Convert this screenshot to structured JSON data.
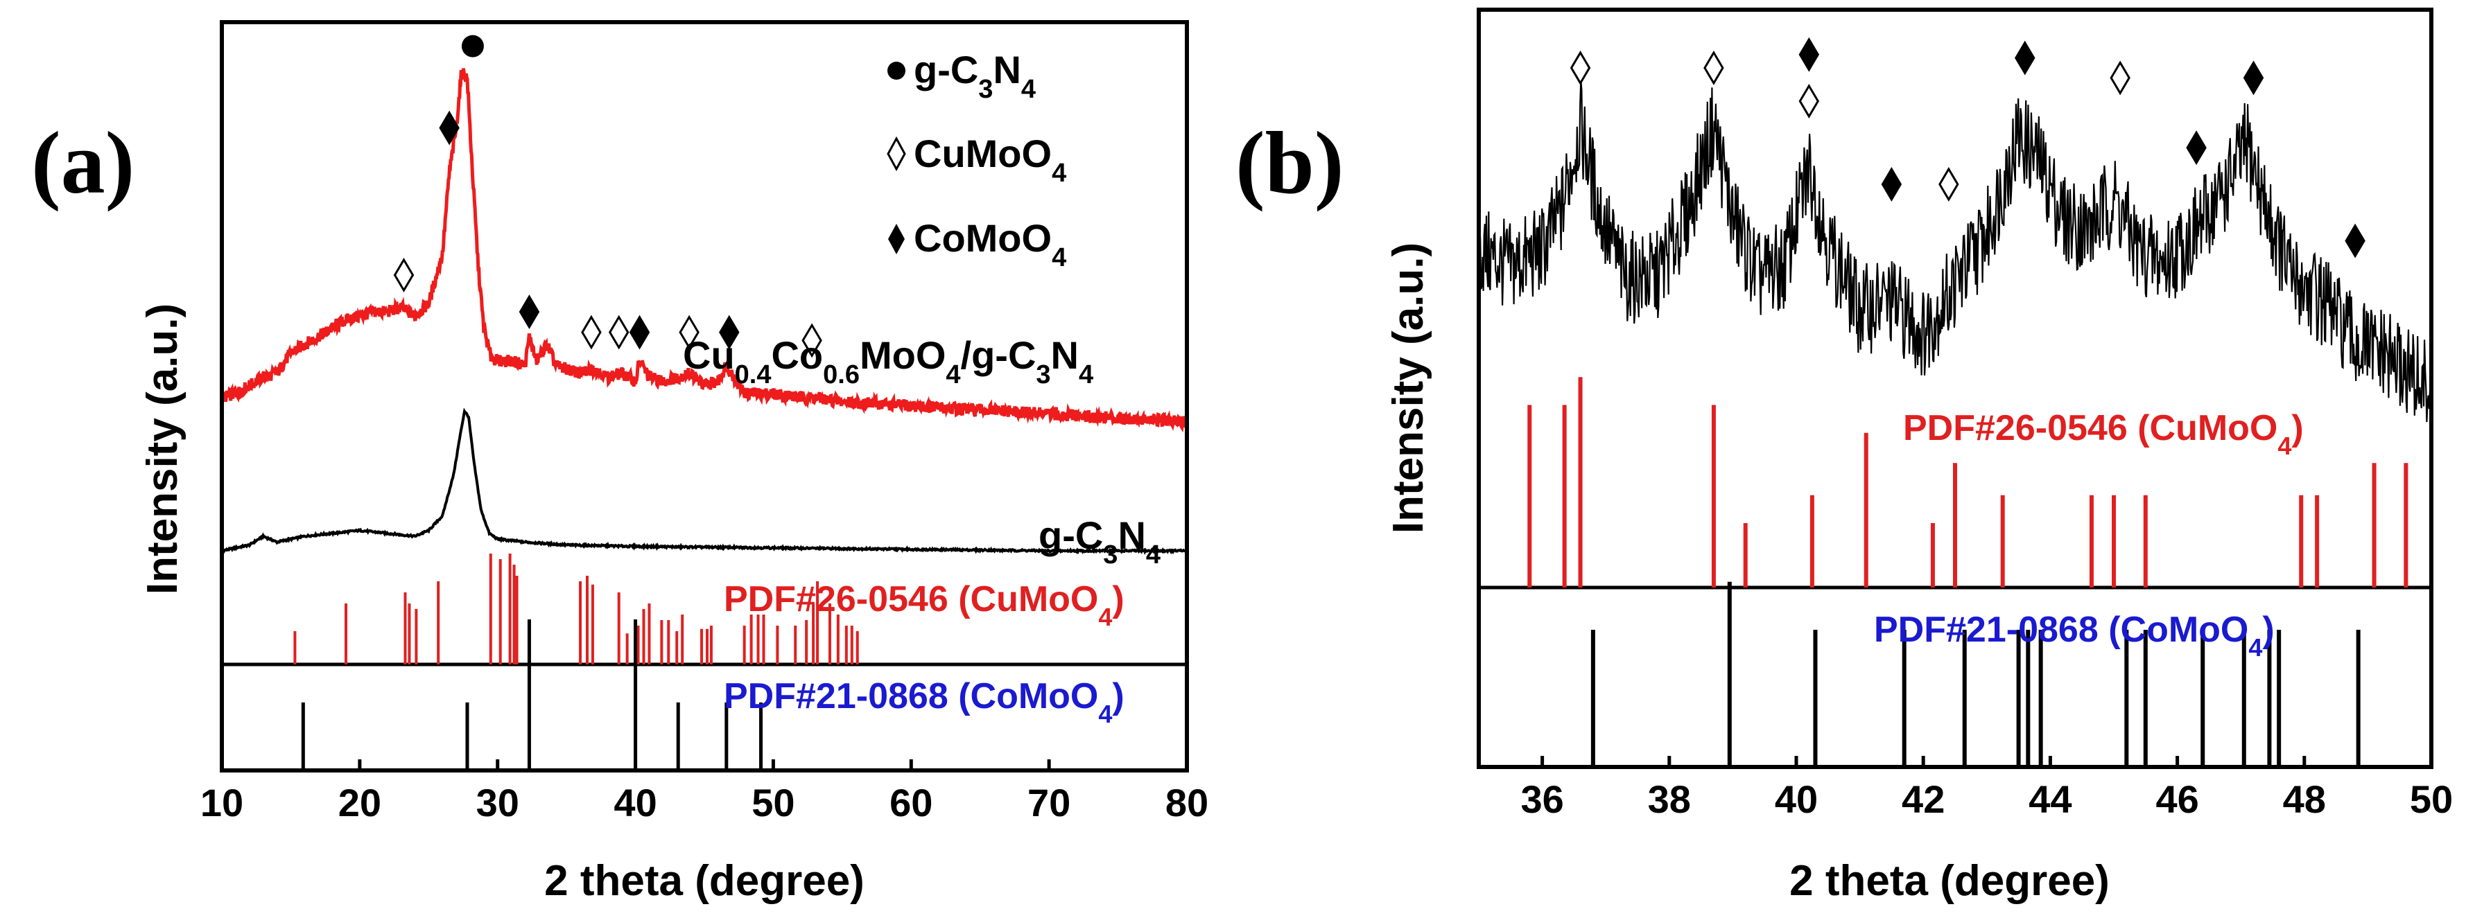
{
  "colors": {
    "sample": "#ee1c1c",
    "pdf_cu": "#e02020",
    "pdf_co_text": "#1a1ad0",
    "black": "#000000"
  },
  "chart_data": [
    {
      "panel_label": "(a)",
      "type": "line",
      "xlabel": "2 theta (degree)",
      "ylabel": "Intensity (a.u.)",
      "xlim": [
        10,
        80
      ],
      "xticks": [
        10,
        20,
        30,
        40,
        50,
        60,
        70,
        80
      ],
      "legend": [
        {
          "symbol": "filled-circle",
          "label": "g-C3N4"
        },
        {
          "symbol": "open-diamond",
          "label": "CuMoO4"
        },
        {
          "symbol": "filled-diamond",
          "label": "CoMoO4"
        }
      ],
      "series": [
        {
          "name": "Cu0.4Co0.6MoO4/g-C3N4",
          "color": "#ee1c1c",
          "x": [
            10,
            11,
            12,
            13,
            14,
            15,
            16,
            17,
            18,
            19,
            20,
            21,
            22,
            23,
            24,
            25,
            26,
            26.5,
            27,
            27.4,
            27.8,
            28.2,
            28.6,
            29,
            29.5,
            30,
            31,
            32,
            32.3,
            32.8,
            33.6,
            34.2,
            35,
            36,
            37,
            38,
            39,
            40,
            40.3,
            41,
            42,
            43,
            44,
            45,
            46,
            46.6,
            47.5,
            48,
            50,
            52,
            53,
            55,
            60,
            65,
            70,
            75,
            80
          ],
          "y": [
            0.2,
            0.21,
            0.23,
            0.25,
            0.26,
            0.31,
            0.33,
            0.35,
            0.37,
            0.39,
            0.4,
            0.41,
            0.41,
            0.42,
            0.4,
            0.43,
            0.55,
            0.75,
            0.86,
            1.0,
            0.98,
            0.74,
            0.52,
            0.37,
            0.3,
            0.29,
            0.29,
            0.28,
            0.35,
            0.29,
            0.33,
            0.28,
            0.27,
            0.26,
            0.27,
            0.25,
            0.26,
            0.24,
            0.29,
            0.25,
            0.24,
            0.25,
            0.26,
            0.23,
            0.24,
            0.28,
            0.23,
            0.21,
            0.21,
            0.2,
            0.2,
            0.19,
            0.18,
            0.17,
            0.16,
            0.15,
            0.14
          ]
        },
        {
          "name": "g-C3N4",
          "color": "#000000",
          "x": [
            10,
            12,
            13,
            14,
            16,
            18,
            20,
            22,
            24,
            25,
            26,
            26.8,
            27.3,
            27.6,
            27.9,
            28.3,
            28.8,
            29.4,
            30,
            32,
            35,
            40,
            50,
            60,
            70,
            80
          ],
          "y": [
            0.0,
            0.02,
            0.05,
            0.03,
            0.05,
            0.06,
            0.07,
            0.06,
            0.05,
            0.07,
            0.12,
            0.26,
            0.4,
            0.48,
            0.46,
            0.3,
            0.14,
            0.06,
            0.04,
            0.03,
            0.02,
            0.015,
            0.01,
            0.005,
            0.0,
            0.0
          ]
        }
      ],
      "references": [
        {
          "name": "PDF#26-0546 (CuMoO4)",
          "color": "#e02020",
          "positions": [
            15.3,
            19.0,
            23.3,
            23.6,
            24.1,
            25.7,
            29.5,
            30.2,
            30.9,
            31.2,
            31.4,
            36.0,
            36.5,
            36.9,
            38.8,
            39.4,
            40.2,
            40.6,
            41.0,
            41.9,
            42.4,
            43.0,
            43.4,
            44.8,
            45.2,
            45.5,
            47.9,
            48.4,
            48.9,
            49.3,
            50.3,
            51.6,
            52.4,
            52.9,
            53.2,
            54.1,
            54.7,
            55.3,
            55.7,
            56.1
          ],
          "heights": [
            0.3,
            0.55,
            0.65,
            0.55,
            0.5,
            0.75,
            1.0,
            0.95,
            1.0,
            0.9,
            0.8,
            0.75,
            0.8,
            0.72,
            0.65,
            0.28,
            0.35,
            0.5,
            0.55,
            0.4,
            0.4,
            0.3,
            0.45,
            0.32,
            0.32,
            0.35,
            0.35,
            0.45,
            0.45,
            0.45,
            0.35,
            0.35,
            0.4,
            0.55,
            0.75,
            0.55,
            0.45,
            0.35,
            0.35,
            0.3
          ]
        },
        {
          "name": "PDF#21-0868 (CoMoO4)",
          "color": "#000000",
          "positions": [
            15.9,
            27.8,
            32.3,
            40.0,
            43.1,
            46.6,
            49.1
          ],
          "heights": [
            0.45,
            0.45,
            1.0,
            1.0,
            0.45,
            0.45,
            0.45
          ]
        }
      ],
      "markers": [
        {
          "symbol": "filled-circle",
          "x": 28.2,
          "y": 1.06
        },
        {
          "symbol": "filled-diamond",
          "x": 26.5,
          "y": 0.86
        },
        {
          "symbol": "open-diamond",
          "x": 23.2,
          "y": 0.5
        },
        {
          "symbol": "filled-diamond",
          "x": 32.3,
          "y": 0.41
        },
        {
          "symbol": "open-diamond",
          "x": 36.8,
          "y": 0.36
        },
        {
          "symbol": "open-diamond",
          "x": 38.8,
          "y": 0.36
        },
        {
          "symbol": "filled-diamond",
          "x": 40.3,
          "y": 0.36
        },
        {
          "symbol": "open-diamond",
          "x": 43.9,
          "y": 0.36
        },
        {
          "symbol": "filled-diamond",
          "x": 46.8,
          "y": 0.36
        },
        {
          "symbol": "open-diamond",
          "x": 52.8,
          "y": 0.34
        }
      ],
      "annotations": [
        {
          "label": "Cu0.4Co0.6MoO4/g-C3N4"
        },
        {
          "label": "g-C3N4"
        }
      ]
    },
    {
      "panel_label": "(b)",
      "type": "line",
      "xlabel": "2 theta (degree)",
      "ylabel": "Intensity (a.u.)",
      "xlim": [
        35,
        50
      ],
      "xticks": [
        36,
        38,
        40,
        42,
        44,
        46,
        48,
        50
      ],
      "series": [
        {
          "name": "Cu0.4Co0.6MoO4/g-C3N4",
          "color": "#000000",
          "x": [
            35,
            35.5,
            36,
            36.3,
            36.6,
            36.9,
            37.3,
            37.8,
            38.3,
            38.7,
            39.0,
            39.4,
            39.8,
            40.2,
            40.5,
            41.0,
            41.5,
            42.0,
            42.5,
            43.0,
            43.5,
            43.8,
            44.2,
            44.6,
            45.0,
            45.4,
            45.8,
            46.3,
            46.8,
            47.1,
            47.4,
            47.8,
            48.3,
            48.8,
            49.3,
            50
          ],
          "y": [
            0.6,
            0.55,
            0.6,
            0.72,
            0.98,
            0.72,
            0.52,
            0.52,
            0.72,
            0.98,
            0.7,
            0.52,
            0.55,
            0.85,
            0.62,
            0.42,
            0.45,
            0.35,
            0.5,
            0.65,
            0.95,
            0.88,
            0.7,
            0.66,
            0.76,
            0.6,
            0.56,
            0.66,
            0.8,
            0.92,
            0.72,
            0.52,
            0.45,
            0.32,
            0.28,
            0.18
          ]
        }
      ],
      "references": [
        {
          "name": "PDF#26-0546 (CuMoO4)",
          "color": "#e02020",
          "positions": [
            35.8,
            36.35,
            36.6,
            38.7,
            39.2,
            40.25,
            41.1,
            42.15,
            42.5,
            43.25,
            44.65,
            45.0,
            45.5,
            47.95,
            48.2,
            49.1,
            49.6
          ],
          "heights": [
            0.85,
            0.85,
            0.98,
            0.85,
            0.3,
            0.43,
            0.72,
            0.3,
            0.58,
            0.43,
            0.43,
            0.43,
            0.43,
            0.43,
            0.43,
            0.58,
            0.58
          ]
        },
        {
          "name": "PDF#21-0868 (CoMoO4)",
          "color": "#000000",
          "positions": [
            36.8,
            38.95,
            40.3,
            41.7,
            42.65,
            43.5,
            43.65,
            43.85,
            45.2,
            45.5,
            46.4,
            47.05,
            47.45,
            47.6,
            48.85
          ],
          "heights": [
            0.6,
            0.81,
            0.6,
            0.6,
            0.6,
            0.6,
            0.6,
            0.6,
            0.6,
            0.6,
            0.6,
            0.6,
            0.6,
            0.6,
            0.6
          ]
        }
      ],
      "markers": [
        {
          "symbol": "open-diamond",
          "x": 36.6,
          "y": 1.15
        },
        {
          "symbol": "open-diamond",
          "x": 38.7,
          "y": 1.15
        },
        {
          "symbol": "filled-diamond",
          "x": 40.2,
          "y": 1.19
        },
        {
          "symbol": "open-diamond",
          "x": 40.2,
          "y": 1.05
        },
        {
          "symbol": "filled-diamond",
          "x": 41.5,
          "y": 0.8
        },
        {
          "symbol": "open-diamond",
          "x": 42.4,
          "y": 0.8
        },
        {
          "symbol": "filled-diamond",
          "x": 43.6,
          "y": 1.18
        },
        {
          "symbol": "open-diamond",
          "x": 45.1,
          "y": 1.12
        },
        {
          "symbol": "filled-diamond",
          "x": 46.3,
          "y": 0.91
        },
        {
          "symbol": "filled-diamond",
          "x": 47.2,
          "y": 1.12
        },
        {
          "symbol": "filled-diamond",
          "x": 48.8,
          "y": 0.63
        }
      ]
    }
  ]
}
